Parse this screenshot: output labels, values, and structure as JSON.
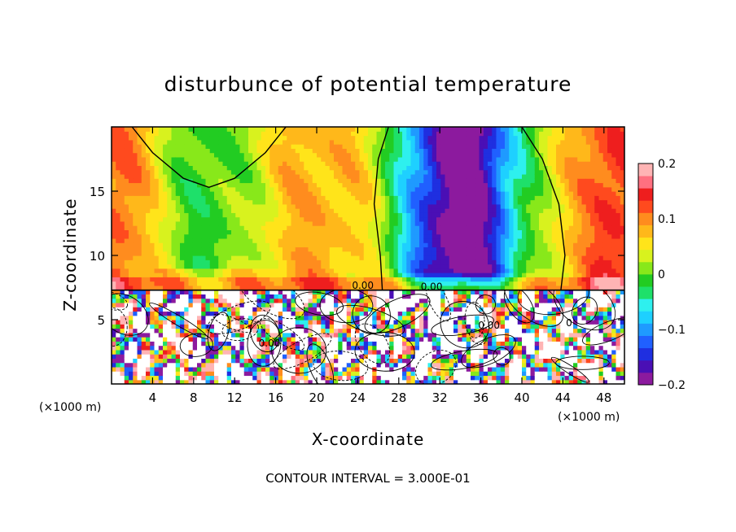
{
  "chart_data": {
    "type": "heatmap",
    "title": "disturbunce of potential temperature",
    "xlabel": "X-coordinate",
    "ylabel": "Z-coordinate",
    "x_unit_left": "(×1000 m)",
    "x_unit_right": "(×1000 m)",
    "footnote": "CONTOUR INTERVAL = 3.000E-01",
    "xlim": [
      0,
      50
    ],
    "ylim": [
      0,
      20
    ],
    "x_ticks": [
      4,
      8,
      12,
      16,
      20,
      24,
      28,
      32,
      36,
      40,
      44,
      48
    ],
    "x_tick_labels": [
      "4",
      "8",
      "12",
      "16",
      "20",
      "24",
      "28",
      "32",
      "36",
      "40",
      "44",
      "48"
    ],
    "y_ticks": [
      5,
      10,
      15
    ],
    "y_tick_labels": [
      "5",
      "10",
      "15"
    ],
    "colorbar": {
      "range": [
        -0.2,
        0.2
      ],
      "tick_values": [
        0.2,
        0.1,
        0,
        -0.1,
        -0.2
      ],
      "tick_labels": [
        "0.2",
        "0.1",
        "0",
        "−0.1",
        "−0.2"
      ],
      "colors": [
        "#8c1a9e",
        "#4a0fb5",
        "#1f2fe0",
        "#2060ff",
        "#1f9aff",
        "#1ed0ff",
        "#2ef0ee",
        "#1ee06a",
        "#22cc22",
        "#88e81a",
        "#d8f21e",
        "#ffe41a",
        "#ffb81a",
        "#ff8c1e",
        "#ff4a1e",
        "#ee1e1e",
        "#ff7080",
        "#ffb4b4"
      ]
    },
    "upper_layer_boundary_z": 7.3,
    "contour_labels": [
      {
        "text": "0.00",
        "x": 24.5,
        "y": 7.4
      },
      {
        "text": "0.00",
        "x": 31.2,
        "y": 7.3
      },
      {
        "text": "0.00",
        "x": 15.4,
        "y": 2.9
      },
      {
        "text": "0.00",
        "x": 36.8,
        "y": 4.3
      },
      {
        "text": "0",
        "x": 44.6,
        "y": 4.5
      }
    ]
  }
}
